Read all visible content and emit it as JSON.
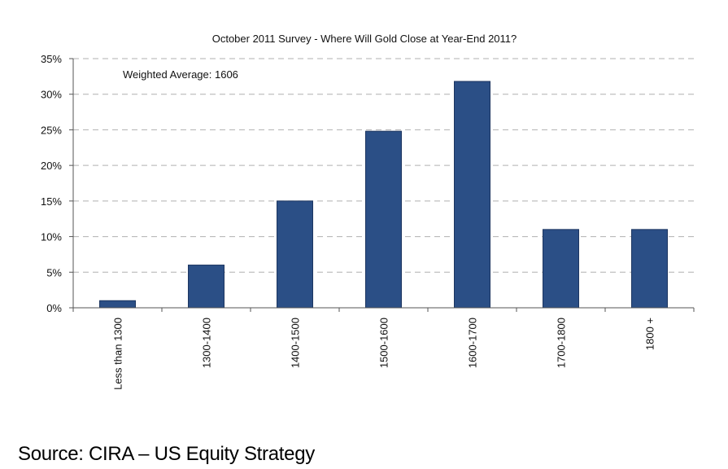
{
  "chart_data": {
    "type": "bar",
    "title": "October 2011 Survey - Where Will Gold Close at Year-End 2011?",
    "annotation": "Weighted Average: 1606",
    "categories": [
      "Less than 1300",
      "1300-1400",
      "1400-1500",
      "1500-1600",
      "1600-1700",
      "1700-1800",
      "1800 +"
    ],
    "values": [
      1,
      6,
      15,
      24.8,
      31.8,
      11,
      11
    ],
    "y_unit": "%",
    "yticks": [
      "0%",
      "5%",
      "10%",
      "15%",
      "20%",
      "25%",
      "30%",
      "35%"
    ],
    "ylim": [
      0,
      35
    ],
    "grid": "horizontal dashed",
    "bar_color": "#2b4f86",
    "bar_edge_color": "#1c3560"
  },
  "source": "Source: CIRA – US Equity Strategy"
}
